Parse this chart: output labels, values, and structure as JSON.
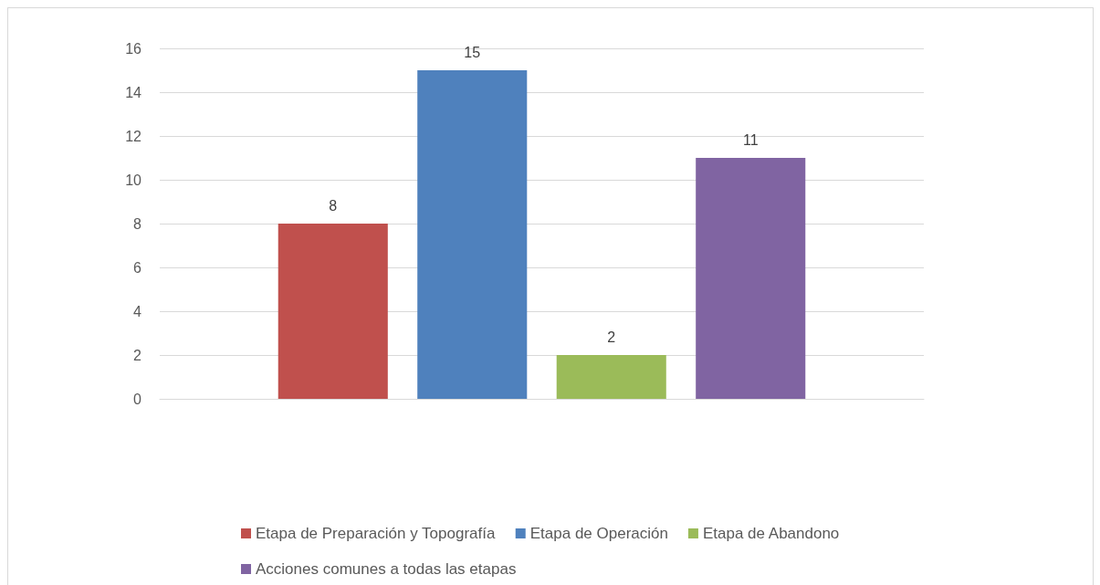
{
  "chart_data": {
    "type": "bar",
    "categories": [
      null
    ],
    "series": [
      {
        "name": "Etapa de Preparación y Topografía",
        "color": "#c0504d",
        "values": [
          8
        ]
      },
      {
        "name": "Etapa de Operación",
        "color": "#4f81bd",
        "values": [
          15
        ]
      },
      {
        "name": "Etapa de Abandono",
        "color": "#9bbb59",
        "values": [
          2
        ]
      },
      {
        "name": "Acciones comunes a todas las etapas",
        "color": "#8064a2",
        "values": [
          11
        ]
      }
    ],
    "ylim": [
      0,
      16
    ],
    "yticks": [
      0,
      2,
      4,
      6,
      8,
      10,
      12,
      14,
      16
    ],
    "grid": "y",
    "legend": "bottom",
    "data_labels": true
  }
}
